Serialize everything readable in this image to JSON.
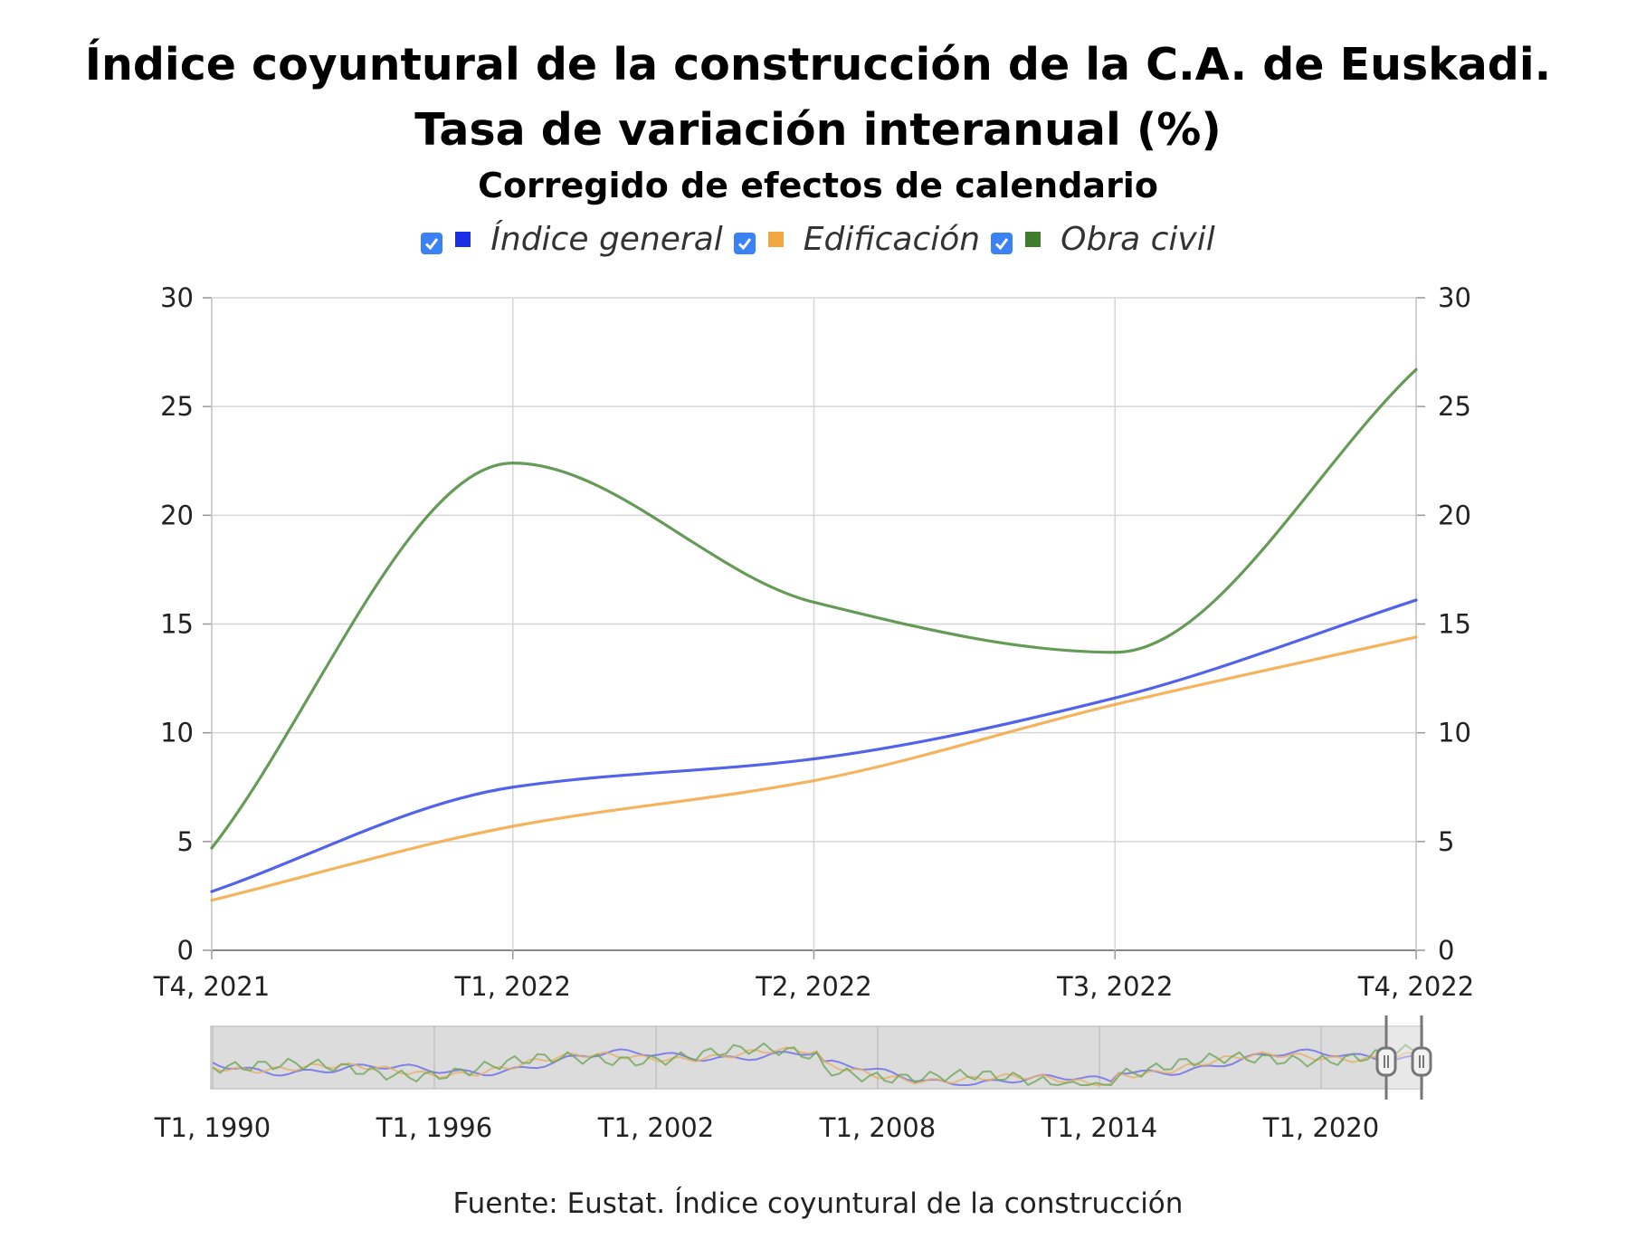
{
  "chart_data": {
    "type": "line",
    "title": "Índice coyuntural de la construcción de la C.A. de Euskadi. Tasa de variación interanual (%)",
    "subtitle": "Corregido de efectos de calendario",
    "categories": [
      "T4, 2021",
      "T1, 2022",
      "T2, 2022",
      "T3, 2022",
      "T4, 2022"
    ],
    "series": [
      {
        "name": "Índice general",
        "color": "#3346e8",
        "values": [
          2.7,
          7.5,
          8.8,
          11.6,
          16.1
        ]
      },
      {
        "name": "Edificación",
        "color": "#f2a640",
        "values": [
          2.3,
          5.7,
          7.8,
          11.3,
          14.4
        ]
      },
      {
        "name": "Obra civil",
        "color": "#4a8a3a",
        "values": [
          4.7,
          22.4,
          16.0,
          13.7,
          26.7
        ]
      }
    ],
    "ylim": [
      0,
      30
    ],
    "yticks": [
      0,
      5,
      10,
      15,
      20,
      25,
      30
    ],
    "grid": true,
    "legend_position": "top-center",
    "dual_y_axis": true,
    "navigator": {
      "labels": [
        "T1, 1990",
        "T1, 1996",
        "T1, 2002",
        "T1, 2008",
        "T1, 2014",
        "T1, 2020"
      ],
      "selection_start": "T4, 2021",
      "selection_end": "T4, 2022"
    }
  },
  "legend_items": [
    {
      "label": "Índice general",
      "color": "#1a2ee6",
      "checked": true
    },
    {
      "label": "Edificación",
      "color": "#f2a640",
      "checked": true
    },
    {
      "label": "Obra civil",
      "color": "#3e7d2c",
      "checked": true
    }
  ],
  "source": "Fuente: Eustat. Índice coyuntural de la construcción"
}
